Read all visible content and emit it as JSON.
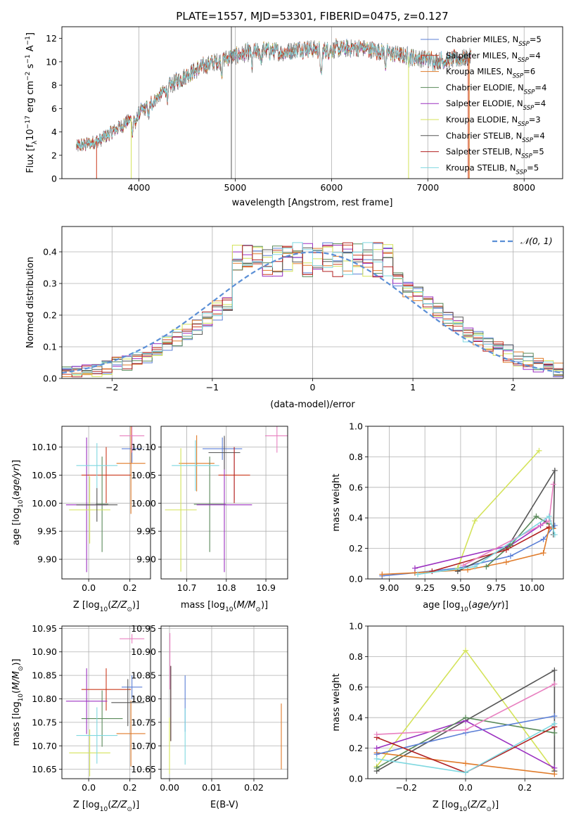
{
  "colors": {
    "Chabrier MILES": "#5b7fd6",
    "Salpeter MILES": "#cc3b1e",
    "Kroupa MILES": "#e07b2a",
    "Chabrier ELODIE": "#5a8a5a",
    "Salpeter ELODIE": "#9b30c0",
    "Kroupa ELODIE": "#d4e35a",
    "Chabrier STELIB": "#555555",
    "Salpeter STELIB": "#b22222",
    "Kroupa STELIB": "#7fd8e0",
    "Pink": "#e880c0",
    "Gaussian": "#5b8fd6"
  },
  "chart_data": [
    {
      "id": "spectrum",
      "type": "line",
      "title": "PLATE=1557, MJD=53301, FIBERID=0475, z=0.127",
      "xlabel": "wavelength [Angstrom, rest frame]",
      "ylabel": "Flux [f_λ10^-17 erg cm^-2 s^-1 A^-1]",
      "xlim": [
        3200,
        8400
      ],
      "ylim": [
        0,
        13
      ],
      "xticks": [
        "4000",
        "5000",
        "6000",
        "7000",
        "8000"
      ],
      "yticks": [
        "0",
        "2",
        "4",
        "6",
        "8",
        "10",
        "12"
      ],
      "continuum": {
        "x": [
          3350,
          3600,
          3900,
          4100,
          4300,
          4500,
          4700,
          4900,
          5100,
          5300,
          5500,
          5700,
          5900,
          6100,
          6300,
          6500,
          6700,
          6900,
          7100,
          7300,
          7450
        ],
        "y": [
          2.7,
          3.3,
          5.0,
          6.2,
          7.8,
          8.9,
          9.7,
          10.3,
          10.7,
          11.0,
          10.8,
          11.2,
          11.0,
          11.1,
          11.2,
          10.9,
          10.6,
          10.3,
          10.1,
          10.2,
          10.4
        ]
      },
      "legend": [
        {
          "name": "Chabrier MILES",
          "n": "5"
        },
        {
          "name": "Salpeter MILES",
          "n": "4"
        },
        {
          "name": "Kroupa MILES",
          "n": "6"
        },
        {
          "name": "Chabrier ELODIE",
          "n": "4"
        },
        {
          "name": "Salpeter ELODIE",
          "n": "4"
        },
        {
          "name": "Kroupa ELODIE",
          "n": "3"
        },
        {
          "name": "Chabrier STELIB",
          "n": "4"
        },
        {
          "name": "Salpeter STELIB",
          "n": "5"
        },
        {
          "name": "Kroupa STELIB",
          "n": "5"
        }
      ]
    },
    {
      "id": "residuals",
      "type": "line",
      "xlabel": "(data-model)/error",
      "ylabel": "Normed distribution",
      "xlim": [
        -2.5,
        2.5
      ],
      "ylim": [
        0,
        0.48
      ],
      "xticks": [
        "−2",
        "−1",
        "0",
        "1",
        "2"
      ],
      "yticks": [
        "0.0",
        "0.1",
        "0.2",
        "0.3",
        "0.4"
      ],
      "legend": [
        "𝒩(0, 1)"
      ],
      "bin_width": 0.1
    },
    {
      "id": "age-Z",
      "type": "scatter",
      "xlabel": "Z [log10(Z/Z⊙)]",
      "ylabel": "age  [log10(age/yr)]",
      "xlim": [
        -0.13,
        0.3
      ],
      "ylim": [
        9.865,
        10.137
      ],
      "xticks": [
        "0.0",
        "0.2"
      ],
      "yticks": [
        "9.90",
        "9.95",
        "10.00",
        "10.05",
        "10.10"
      ],
      "points": [
        {
          "c": "Chabrier MILES",
          "x": 0.21,
          "xe": 0.05,
          "y": 10.097,
          "ye": 0.025
        },
        {
          "c": "Salpeter MILES",
          "x": 0.085,
          "xe": 0.12,
          "y": 10.05,
          "ye": 0.05
        },
        {
          "c": "Kroupa MILES",
          "x": 0.205,
          "xe": 0.07,
          "y": 10.071,
          "ye": 0.09
        },
        {
          "c": "Chabrier ELODIE",
          "x": 0.065,
          "xe": 0.03,
          "y": 9.998,
          "ye": 0.085
        },
        {
          "c": "Salpeter ELODIE",
          "x": -0.01,
          "xe": 0.1,
          "y": 9.997,
          "ye": 0.12
        },
        {
          "c": "Kroupa ELODIE",
          "x": 0.005,
          "xe": 0.1,
          "y": 9.988,
          "ye": 0.06
        },
        {
          "c": "Chabrier STELIB",
          "x": 0.04,
          "xe": 0.1,
          "y": 9.997,
          "ye": 0.03
        },
        {
          "c": "Kroupa STELIB",
          "x": 0.04,
          "xe": 0.1,
          "y": 10.067,
          "ye": 0.04
        },
        {
          "c": "Pink",
          "x": 0.21,
          "xe": 0.06,
          "y": 10.12,
          "ye": 0.03
        }
      ]
    },
    {
      "id": "age-mass",
      "type": "scatter",
      "xlabel": "mass [log10(M/M⊙)]",
      "xlim": [
        10.635,
        10.955
      ],
      "ylim": [
        9.865,
        10.137
      ],
      "xticks": [
        "10.7",
        "10.8",
        "10.9"
      ],
      "yticks": [
        "9.90",
        "9.95",
        "10.00",
        "10.05",
        "10.10"
      ],
      "points": [
        {
          "c": "Chabrier MILES",
          "x": 10.79,
          "xe": 0.05,
          "y": 10.097,
          "ye": 0.02
        },
        {
          "c": "Salpeter MILES",
          "x": 10.82,
          "xe": 0.04,
          "y": 10.05,
          "ye": 0.045
        },
        {
          "c": "Kroupa MILES",
          "x": 10.725,
          "xe": 0.045,
          "y": 10.071,
          "ye": 0.05
        },
        {
          "c": "Chabrier ELODIE",
          "x": 10.758,
          "xe": 0.04,
          "y": 9.998,
          "ye": 0.085
        },
        {
          "c": "Salpeter ELODIE",
          "x": 10.795,
          "xe": 0.07,
          "y": 9.997,
          "ye": 0.12
        },
        {
          "c": "Kroupa ELODIE",
          "x": 10.685,
          "xe": 0.04,
          "y": 9.988,
          "ye": 0.11
        },
        {
          "c": "Chabrier STELIB",
          "x": 10.795,
          "xe": 0.04,
          "y": 10.09,
          "ye": 0.03
        },
        {
          "c": "Salpeter STELIB",
          "x": 10.82,
          "xe": 0.0,
          "y": 10.05,
          "ye": 0.05
        },
        {
          "c": "Kroupa STELIB",
          "x": 10.722,
          "xe": 0.06,
          "y": 10.067,
          "ye": 0.045
        },
        {
          "c": "Pink",
          "x": 10.928,
          "xe": 0.03,
          "y": 10.12,
          "ye": 0.03
        }
      ]
    },
    {
      "id": "weight-age",
      "type": "line",
      "xlabel": "age  [log10(age/yr)]",
      "ylabel": "mass weight",
      "xlim": [
        8.85,
        10.22
      ],
      "ylim": [
        0,
        1.0
      ],
      "xticks": [
        "9.00",
        "9.25",
        "9.50",
        "9.75",
        "10.00"
      ],
      "yticks": [
        "0.0",
        "0.2",
        "0.4",
        "0.6",
        "0.8",
        "1.0"
      ],
      "series": [
        {
          "c": "Chabrier MILES",
          "x": [
            8.95,
            9.18,
            9.48,
            9.85,
            10.08,
            10.16
          ],
          "y": [
            0.02,
            0.04,
            0.07,
            0.15,
            0.26,
            0.35
          ]
        },
        {
          "c": "Kroupa MILES",
          "x": [
            8.95,
            9.18,
            9.55,
            9.82,
            10.08,
            10.12,
            10.15
          ],
          "y": [
            0.03,
            0.04,
            0.06,
            0.11,
            0.17,
            0.33,
            0.33
          ]
        },
        {
          "c": "Kroupa ELODIE",
          "x": [
            9.48,
            9.6,
            10.05
          ],
          "y": [
            0.07,
            0.38,
            0.84
          ]
        },
        {
          "c": "Chabrier STELIB",
          "x": [
            9.48,
            9.83,
            10.16,
            10.15
          ],
          "y": [
            0.05,
            0.21,
            0.71,
            0.29
          ]
        },
        {
          "c": "Salpeter ELODIE",
          "x": [
            9.18,
            9.85,
            10.06,
            10.1
          ],
          "y": [
            0.07,
            0.22,
            0.35,
            0.38
          ]
        },
        {
          "c": "Chabrier ELODIE",
          "x": [
            9.68,
            9.85,
            10.03,
            10.12
          ],
          "y": [
            0.08,
            0.22,
            0.41,
            0.36
          ]
        },
        {
          "c": "Salpeter STELIB",
          "x": [
            9.3,
            9.82,
            10.12
          ],
          "y": [
            0.05,
            0.19,
            0.34
          ]
        },
        {
          "c": "Pink",
          "x": [
            9.52,
            10.12,
            10.15
          ],
          "y": [
            0.09,
            0.38,
            0.62
          ]
        },
        {
          "c": "Kroupa STELIB",
          "x": [
            9.2,
            9.6,
            10.12,
            10.16
          ],
          "y": [
            0.03,
            0.08,
            0.41,
            0.29
          ]
        }
      ]
    },
    {
      "id": "mass-Z",
      "type": "scatter",
      "xlabel": "Z [log10(Z/Z⊙)]",
      "ylabel": "mass [log10(M/M⊙)]",
      "xlim": [
        -0.13,
        0.3
      ],
      "ylim": [
        10.63,
        10.955
      ],
      "xticks": [
        "0.0",
        "0.2"
      ],
      "yticks": [
        "10.65",
        "10.70",
        "10.75",
        "10.80",
        "10.85",
        "10.90",
        "10.95"
      ],
      "points": [
        {
          "c": "Chabrier MILES",
          "x": 0.21,
          "xe": 0.05,
          "y": 10.825,
          "ye": 0.025
        },
        {
          "c": "Salpeter MILES",
          "x": 0.085,
          "xe": 0.12,
          "y": 10.82,
          "ye": 0.045
        },
        {
          "c": "Kroupa MILES",
          "x": 0.205,
          "xe": 0.07,
          "y": 10.726,
          "ye": 0.07
        },
        {
          "c": "Chabrier ELODIE",
          "x": 0.065,
          "xe": 0.1,
          "y": 10.758,
          "ye": 0.06
        },
        {
          "c": "Salpeter ELODIE",
          "x": -0.01,
          "xe": 0.1,
          "y": 10.795,
          "ye": 0.07
        },
        {
          "c": "Kroupa ELODIE",
          "x": 0.005,
          "xe": 0.1,
          "y": 10.685,
          "ye": 0.05
        },
        {
          "c": "Chabrier STELIB",
          "x": 0.19,
          "xe": 0.08,
          "y": 10.792,
          "ye": 0.05
        },
        {
          "c": "Kroupa STELIB",
          "x": 0.04,
          "xe": 0.1,
          "y": 10.722,
          "ye": 0.06
        },
        {
          "c": "Pink",
          "x": 0.21,
          "xe": 0.06,
          "y": 10.928,
          "ye": 0.01
        }
      ]
    },
    {
      "id": "mass-EBV",
      "type": "scatter",
      "xlabel": "E(B-V)",
      "xlim": [
        -0.002,
        0.028
      ],
      "ylim": [
        10.63,
        10.955
      ],
      "xticks": [
        "0.00",
        "0.01",
        "0.02"
      ],
      "yticks": [
        "10.65",
        "10.70",
        "10.75",
        "10.80",
        "10.85",
        "10.90",
        "10.95"
      ],
      "points": [
        {
          "c": "Salpeter STELIB",
          "x": 0.0003,
          "xe": 0,
          "y": 10.79,
          "ye": 0.08
        },
        {
          "c": "Pink",
          "x": 0.0001,
          "xe": 0,
          "y": 10.88,
          "ye": 0.06
        },
        {
          "c": "Chabrier STELIB",
          "x": 0.0003,
          "xe": 0,
          "y": 10.79,
          "ye": 0.08
        },
        {
          "c": "Kroupa ELODIE",
          "x": 0.0,
          "xe": 0,
          "y": 10.7,
          "ye": 0.06
        },
        {
          "c": "Chabrier MILES",
          "x": 0.0037,
          "xe": 0,
          "y": 10.79,
          "ye": 0.06
        },
        {
          "c": "Kroupa STELIB",
          "x": 0.0037,
          "xe": 0,
          "y": 10.72,
          "ye": 0.06
        },
        {
          "c": "Kroupa MILES",
          "x": 0.0265,
          "xe": 0,
          "y": 10.72,
          "ye": 0.07
        }
      ]
    },
    {
      "id": "weight-Z",
      "type": "line",
      "xlabel": "Z [log10(Z/Z⊙)]",
      "ylabel": "mass weight",
      "xlim": [
        -0.33,
        0.33
      ],
      "ylim": [
        0,
        1.0
      ],
      "xticks": [
        "−0.2",
        "0.0",
        "0.2"
      ],
      "yticks": [
        "0.0",
        "0.2",
        "0.4",
        "0.6",
        "0.8",
        "1.0"
      ],
      "series": [
        {
          "c": "Kroupa ELODIE",
          "x": [
            -0.3,
            0.0,
            0.3
          ],
          "y": [
            0.08,
            0.84,
            0.05
          ]
        },
        {
          "c": "Chabrier STELIB",
          "x": [
            -0.3,
            0.3,
            0.3
          ],
          "y": [
            0.05,
            0.71,
            0.05
          ]
        },
        {
          "c": "Salpeter ELODIE",
          "x": [
            -0.3,
            0.0,
            0.3
          ],
          "y": [
            0.2,
            0.38,
            0.07
          ]
        },
        {
          "c": "Chabrier ELODIE",
          "x": [
            -0.3,
            0.0,
            0.3
          ],
          "y": [
            0.07,
            0.4,
            0.3
          ]
        },
        {
          "c": "Kroupa MILES",
          "x": [
            -0.3,
            0.0,
            0.3
          ],
          "y": [
            0.17,
            0.1,
            0.03
          ]
        },
        {
          "c": "Chabrier MILES",
          "x": [
            -0.3,
            0.0,
            0.3
          ],
          "y": [
            0.16,
            0.3,
            0.41
          ]
        },
        {
          "c": "Salpeter STELIB",
          "x": [
            -0.3,
            0.0,
            0.3
          ],
          "y": [
            0.27,
            0.04,
            0.34
          ]
        },
        {
          "c": "Pink",
          "x": [
            -0.3,
            0.0,
            0.3
          ],
          "y": [
            0.29,
            0.32,
            0.62
          ]
        },
        {
          "c": "Kroupa STELIB",
          "x": [
            -0.3,
            0.0,
            0.3
          ],
          "y": [
            0.13,
            0.04,
            0.36
          ]
        }
      ]
    }
  ]
}
